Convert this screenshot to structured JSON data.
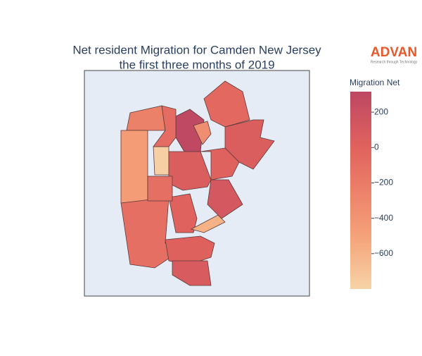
{
  "chart_data": {
    "type": "choropleth",
    "title": [
      "Net resident Migration for Camden New Jersey",
      "the first three months of 2019"
    ],
    "logo": {
      "name": "ADVAN",
      "tagline": "Research through Technology"
    },
    "colorbar": {
      "title": "Migration Net",
      "range": [
        -800,
        316
      ],
      "ticks": [
        200,
        0,
        -200,
        -400,
        -600
      ]
    },
    "colorscale": [
      [
        0,
        "#f6d3a7"
      ],
      [
        0.25,
        "#f5a57b"
      ],
      [
        0.5,
        "#ec8069"
      ],
      [
        0.72,
        "#e0625e"
      ],
      [
        1,
        "#bd4763"
      ]
    ],
    "z": [
      -250,
      -450,
      -780,
      300,
      -50,
      -350,
      50,
      0,
      -100,
      0,
      -600,
      120,
      50,
      20,
      80,
      -100,
      -80
    ]
  }
}
